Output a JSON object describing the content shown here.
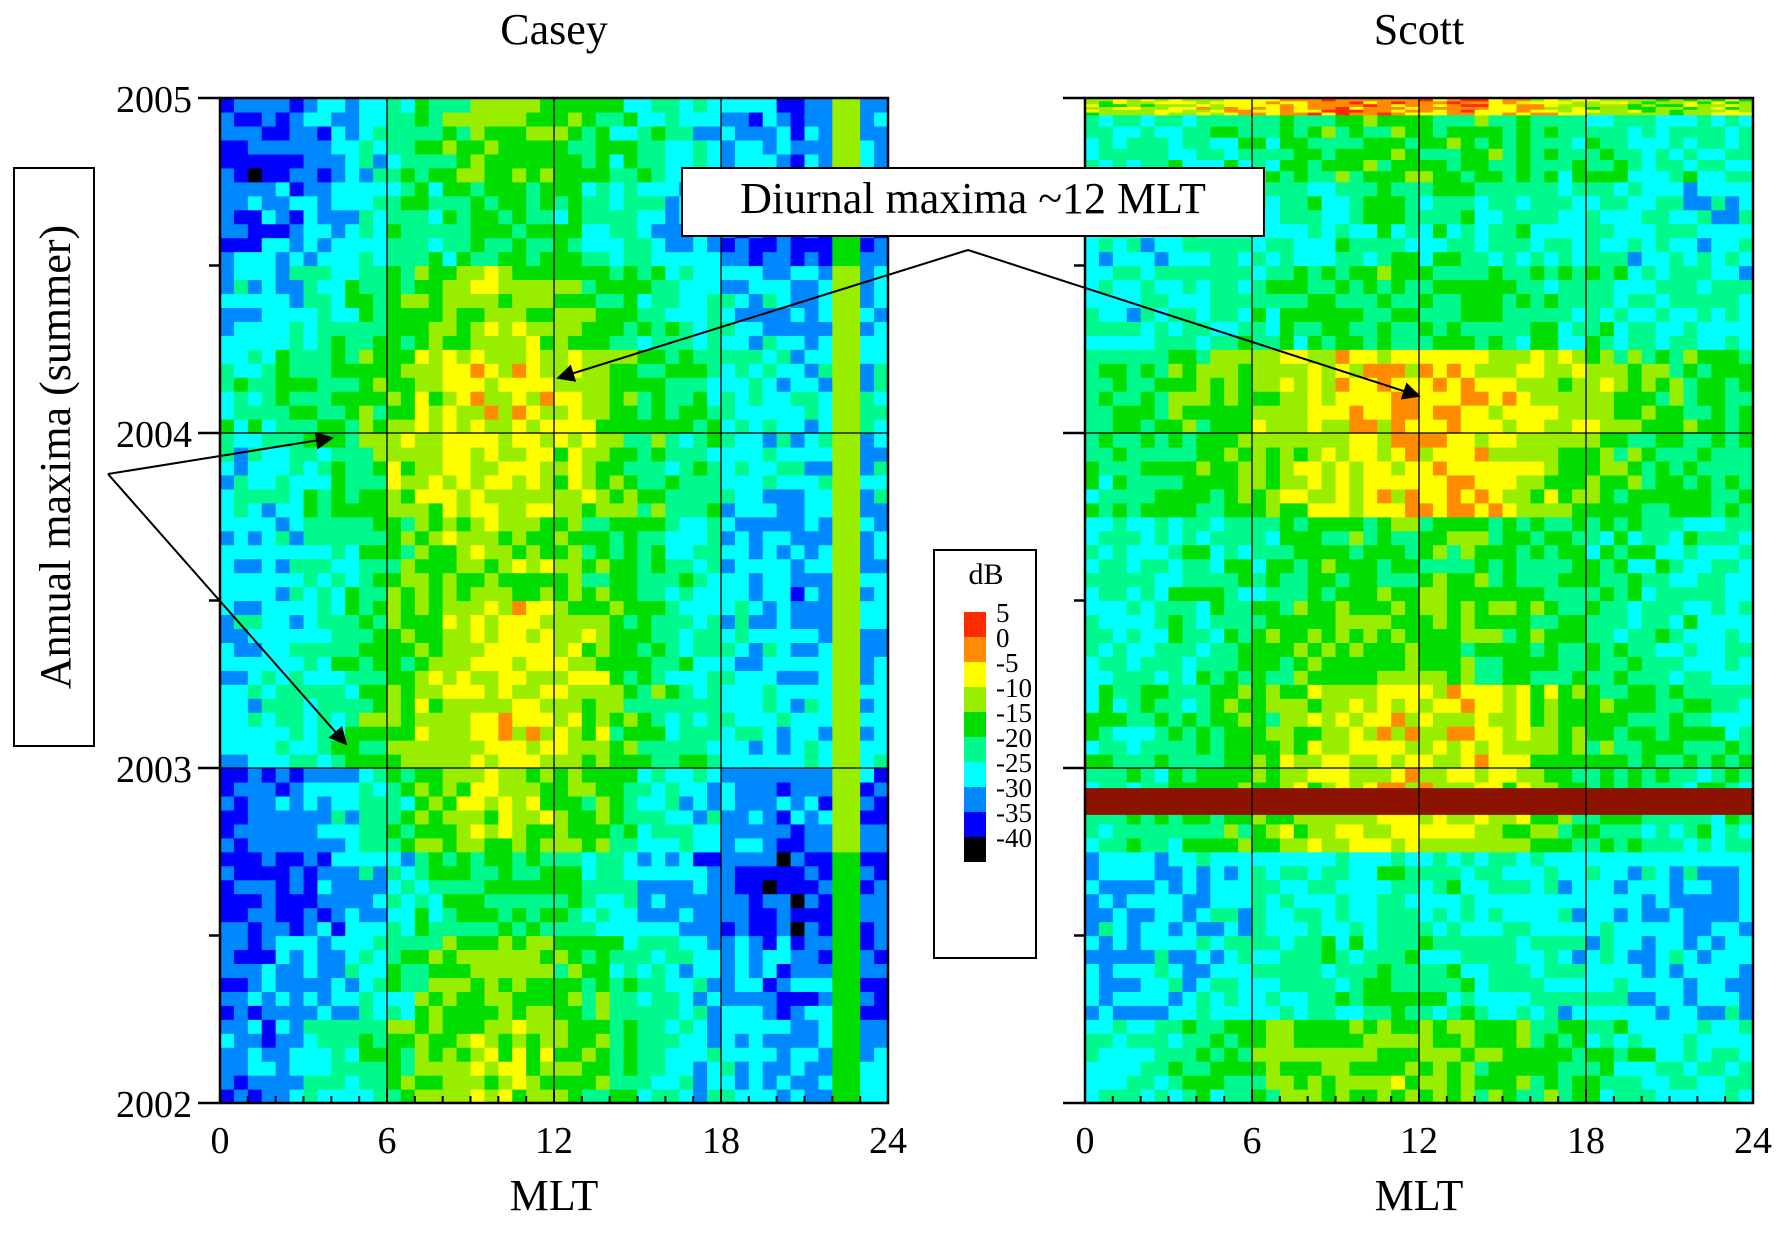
{
  "chart_data": [
    {
      "type": "heatmap",
      "title": "Casey",
      "xlabel": "MLT",
      "ylabel": "",
      "x_ticks": [
        "0",
        "6",
        "12",
        "18",
        "24"
      ],
      "y_ticks": [
        "2002",
        "2003",
        "2004",
        "2005"
      ],
      "xlim": [
        0,
        24
      ],
      "ylim": [
        2002,
        2005
      ],
      "grid": true,
      "column_hours": [
        0,
        1,
        2,
        3,
        4,
        5,
        6,
        7,
        8,
        9,
        10,
        11,
        12,
        13,
        14,
        15,
        16,
        17,
        18,
        19,
        20,
        21,
        22,
        23
      ],
      "band_years": [
        2002.0,
        2002.25,
        2002.5,
        2002.75,
        2003.0,
        2003.25,
        2003.5,
        2003.75,
        2004.0,
        2004.25,
        2004.5,
        2004.75
      ],
      "values_db": [
        [
          -28,
          -27,
          -25,
          -22,
          -20,
          -17,
          -12,
          -10,
          -8,
          -7,
          -7,
          -8,
          -10,
          -12,
          -15,
          -18,
          -20,
          -22,
          -23,
          -25,
          -26,
          -25,
          -12,
          -26
        ],
        [
          -29,
          -28,
          -27,
          -25,
          -23,
          -20,
          -17,
          -13,
          -10,
          -9,
          -9,
          -10,
          -12,
          -14,
          -17,
          -19,
          -21,
          -23,
          -25,
          -27,
          -28,
          -27,
          -12,
          -28
        ],
        [
          -31,
          -31,
          -30,
          -28,
          -26,
          -24,
          -21,
          -18,
          -16,
          -15,
          -15,
          -16,
          -17,
          -19,
          -21,
          -23,
          -25,
          -27,
          -29,
          -31,
          -32,
          -31,
          -12,
          -31
        ],
        [
          -30,
          -29,
          -28,
          -26,
          -23,
          -20,
          -16,
          -12,
          -9,
          -7,
          -7,
          -8,
          -10,
          -12,
          -15,
          -18,
          -21,
          -23,
          -25,
          -27,
          -28,
          -28,
          -10,
          -28
        ],
        [
          -23,
          -22,
          -21,
          -19,
          -17,
          -14,
          -11,
          -8,
          -6,
          -5,
          -4,
          -4,
          -6,
          -8,
          -11,
          -14,
          -17,
          -19,
          -21,
          -22,
          -23,
          -23,
          -8,
          -23
        ],
        [
          -24,
          -23,
          -22,
          -20,
          -18,
          -15,
          -12,
          -9,
          -7,
          -5,
          -4,
          -5,
          -6,
          -9,
          -12,
          -15,
          -18,
          -20,
          -22,
          -24,
          -25,
          -25,
          -8,
          -25
        ],
        [
          -25,
          -24,
          -23,
          -21,
          -19,
          -16,
          -13,
          -10,
          -9,
          -8,
          -8,
          -9,
          -10,
          -12,
          -14,
          -17,
          -19,
          -21,
          -23,
          -25,
          -26,
          -26,
          -8,
          -26
        ],
        [
          -22,
          -21,
          -20,
          -18,
          -16,
          -13,
          -9,
          -6,
          -5,
          -5,
          -5,
          -5,
          -6,
          -8,
          -11,
          -14,
          -17,
          -19,
          -21,
          -22,
          -23,
          -23,
          -9,
          -23
        ],
        [
          -19,
          -18,
          -17,
          -16,
          -14,
          -12,
          -9,
          -6,
          -4,
          -3,
          -3,
          -4,
          -4,
          -6,
          -10,
          -13,
          -16,
          -18,
          -20,
          -21,
          -22,
          -22,
          -9,
          -22
        ],
        [
          -24,
          -23,
          -22,
          -20,
          -18,
          -15,
          -13,
          -11,
          -9,
          -8,
          -8,
          -9,
          -11,
          -13,
          -15,
          -17,
          -19,
          -21,
          -23,
          -24,
          -25,
          -25,
          -10,
          -25
        ],
        [
          -28,
          -28,
          -27,
          -25,
          -23,
          -21,
          -19,
          -17,
          -16,
          -15,
          -15,
          -15,
          -16,
          -18,
          -20,
          -22,
          -24,
          -26,
          -28,
          -30,
          -31,
          -30,
          -11,
          -30
        ],
        [
          -30,
          -31,
          -30,
          -28,
          -25,
          -22,
          -19,
          -15,
          -12,
          -10,
          -10,
          -11,
          -13,
          -15,
          -17,
          -19,
          -21,
          -23,
          -25,
          -27,
          -28,
          -27,
          -10,
          -27
        ]
      ]
    },
    {
      "type": "heatmap",
      "title": "Scott",
      "xlabel": "MLT",
      "ylabel": "",
      "x_ticks": [
        "0",
        "6",
        "12",
        "18",
        "24"
      ],
      "xlim": [
        0,
        24
      ],
      "ylim": [
        2002,
        2005
      ],
      "grid": true,
      "column_hours": [
        0,
        1,
        2,
        3,
        4,
        5,
        6,
        7,
        8,
        9,
        10,
        11,
        12,
        13,
        14,
        15,
        16,
        17,
        18,
        19,
        20,
        21,
        22,
        23
      ],
      "band_years": [
        2002.0,
        2002.25,
        2002.5,
        2002.75,
        2003.0,
        2003.25,
        2003.5,
        2003.75,
        2004.0,
        2004.25,
        2004.5,
        2004.75,
        2004.95
      ],
      "values_db": [
        [
          -20,
          -20,
          -19,
          -18,
          -16,
          -14,
          -12,
          -11,
          -10,
          -9,
          -9,
          -9,
          -9,
          -10,
          -11,
          -12,
          -14,
          -16,
          -17,
          -18,
          -19,
          -20,
          -20,
          -20
        ],
        [
          -24,
          -24,
          -23,
          -23,
          -22,
          -21,
          -20,
          -19,
          -18,
          -18,
          -17,
          -17,
          -17,
          -18,
          -18,
          -19,
          -20,
          -21,
          -22,
          -22,
          -23,
          -23,
          -24,
          -24
        ],
        [
          -24,
          -24,
          -24,
          -23,
          -23,
          -22,
          -21,
          -20,
          -20,
          -20,
          -19,
          -19,
          -19,
          -19,
          -20,
          -20,
          -21,
          -22,
          -22,
          -23,
          -23,
          -24,
          -24,
          -24
        ],
        [
          -18,
          -18,
          -17,
          -16,
          -14,
          -12,
          -10,
          -8,
          -6,
          -5,
          -4,
          -3,
          -4,
          -5,
          -6,
          -8,
          -10,
          -12,
          -14,
          -16,
          -17,
          -18,
          -18,
          -18
        ],
        [
          -18,
          -18,
          -17,
          -16,
          -15,
          -13,
          -11,
          -9,
          -7,
          -5,
          -4,
          -3,
          -3,
          -3,
          -4,
          -6,
          -8,
          -10,
          -12,
          -14,
          -15,
          -16,
          -17,
          -18
        ],
        [
          -20,
          -20,
          -19,
          -18,
          -17,
          -15,
          -14,
          -12,
          -11,
          -10,
          -10,
          -10,
          -10,
          -11,
          -12,
          -13,
          -14,
          -15,
          -16,
          -17,
          -18,
          -19,
          -20,
          -20
        ],
        [
          -20,
          -20,
          -19,
          -19,
          -18,
          -17,
          -16,
          -15,
          -14,
          -14,
          -13,
          -13,
          -13,
          -13,
          -14,
          -15,
          -16,
          -17,
          -17,
          -18,
          -19,
          -19,
          -20,
          -20
        ],
        [
          -16,
          -16,
          -15,
          -14,
          -13,
          -11,
          -9,
          -7,
          -5,
          -4,
          -3,
          -2,
          -2,
          -2,
          -3,
          -5,
          -7,
          -9,
          -11,
          -13,
          -14,
          -15,
          -16,
          -16
        ],
        [
          -15,
          -15,
          -14,
          -13,
          -12,
          -10,
          -8,
          -6,
          -4,
          -3,
          -2,
          -1,
          -1,
          -1,
          -2,
          -3,
          -5,
          -7,
          -9,
          -11,
          -12,
          -13,
          -14,
          -15
        ],
        [
          -21,
          -21,
          -20,
          -20,
          -19,
          -18,
          -17,
          -16,
          -15,
          -15,
          -14,
          -14,
          -14,
          -15,
          -15,
          -16,
          -17,
          -18,
          -18,
          -19,
          -20,
          -20,
          -21,
          -21
        ],
        [
          -22,
          -22,
          -22,
          -21,
          -21,
          -20,
          -20,
          -19,
          -19,
          -19,
          -18,
          -18,
          -18,
          -18,
          -19,
          -19,
          -20,
          -20,
          -21,
          -21,
          -22,
          -22,
          -22,
          -22
        ],
        [
          -20,
          -20,
          -19,
          -19,
          -18,
          -17,
          -16,
          -15,
          -14,
          -13,
          -13,
          -13,
          -13,
          -14,
          -14,
          -15,
          -16,
          -17,
          -18,
          -18,
          -19,
          -19,
          -20,
          -20
        ],
        [
          -8,
          -7,
          -6,
          -5,
          -4,
          -2,
          -1,
          1,
          2,
          3,
          3,
          2,
          2,
          3,
          2,
          1,
          -2,
          -4,
          -6,
          -7,
          -8,
          -8,
          -8,
          -8
        ]
      ],
      "missing_band_year": 2002.9
    }
  ],
  "colorbar": {
    "title": "dB",
    "entries": [
      {
        "label": "5",
        "color": "#ff2a00"
      },
      {
        "label": "0",
        "color": "#ff8c00"
      },
      {
        "label": "-5",
        "color": "#ffff00"
      },
      {
        "label": "-10",
        "color": "#99ee00"
      },
      {
        "label": "-15",
        "color": "#00dd00"
      },
      {
        "label": "-20",
        "color": "#00f98c"
      },
      {
        "label": "-25",
        "color": "#00ffff"
      },
      {
        "label": "-30",
        "color": "#0088ff"
      },
      {
        "label": "-35",
        "color": "#0000ff"
      },
      {
        "label": "-40",
        "color": "#000000"
      }
    ],
    "missing_color": "#8b1300"
  },
  "annotations": {
    "annual": "Annual maxima (summer)",
    "diurnal": "Diurnal maxima ~12 MLT"
  }
}
